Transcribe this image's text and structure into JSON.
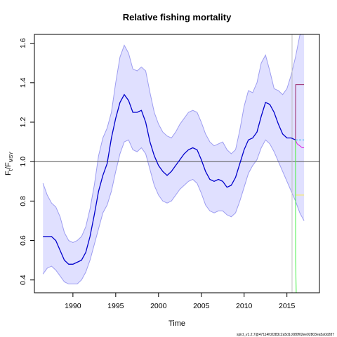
{
  "chart_data": {
    "type": "line",
    "title": "Relative fishing mortality",
    "xlabel": "Time",
    "ylabel": {
      "main": "F",
      "sub_t": "t",
      "slash": "/F",
      "sub_msy": "MSY"
    },
    "xlim": [
      1985.5,
      2018.8
    ],
    "ylim": [
      0.335,
      1.645
    ],
    "x_ticks": [
      1990,
      1995,
      2000,
      2005,
      2010,
      2015
    ],
    "y_ticks": [
      0.4,
      0.6,
      0.8,
      1.0,
      1.2,
      1.4,
      1.6
    ],
    "y_tick_labels": [
      "0.4",
      "0.6",
      "0.8",
      "1.0",
      "1.2",
      "1.4",
      "1.6"
    ],
    "reference_line_y": 1.0,
    "current_year_line_x": 2015.6,
    "grid": false,
    "colors": {
      "estimate": "#0000cc",
      "ci_fill": "#e0e0ff",
      "ci_line": "#9d9df0",
      "reference": "#555555",
      "vline": "#c0c0c0",
      "proj_magenta": "#dd22dd",
      "proj_dark": "#992266",
      "proj_cyan": "#22bbee",
      "proj_yellow": "#ffee44",
      "proj_green": "#44ee44"
    },
    "series": [
      {
        "role": "estimate",
        "x": [
          1986.5,
          1987.5,
          1988.0,
          1988.5,
          1989.0,
          1989.5,
          1990.0,
          1990.5,
          1991.0,
          1991.5,
          1992.0,
          1992.5,
          1993.0,
          1993.5,
          1994.0,
          1994.5,
          1995.0,
          1995.5,
          1996.0,
          1996.5,
          1997.0,
          1997.5,
          1998.0,
          1998.5,
          1999.0,
          1999.5,
          2000.0,
          2000.5,
          2001.0,
          2001.5,
          2002.0,
          2002.5,
          2003.0,
          2003.5,
          2004.0,
          2004.5,
          2005.0,
          2005.5,
          2006.0,
          2006.5,
          2007.0,
          2007.5,
          2008.0,
          2008.5,
          2009.0,
          2009.5,
          2010.0,
          2010.5,
          2011.0,
          2011.5,
          2012.0,
          2012.5,
          2013.0,
          2013.5,
          2014.0,
          2014.5,
          2015.0,
          2015.5,
          2016.0
        ],
        "values": [
          0.62,
          0.62,
          0.6,
          0.55,
          0.5,
          0.48,
          0.48,
          0.49,
          0.5,
          0.54,
          0.62,
          0.73,
          0.85,
          0.93,
          0.99,
          1.12,
          1.22,
          1.3,
          1.34,
          1.31,
          1.25,
          1.25,
          1.26,
          1.2,
          1.1,
          1.03,
          0.98,
          0.95,
          0.93,
          0.95,
          0.98,
          1.01,
          1.04,
          1.06,
          1.07,
          1.06,
          1.01,
          0.95,
          0.91,
          0.9,
          0.91,
          0.9,
          0.87,
          0.88,
          0.92,
          0.99,
          1.06,
          1.11,
          1.12,
          1.15,
          1.23,
          1.3,
          1.29,
          1.25,
          1.19,
          1.14,
          1.12,
          1.12,
          1.11
        ]
      },
      {
        "role": "upper_ci",
        "x": [
          1986.5,
          1987.0,
          1987.5,
          1988.0,
          1988.5,
          1989.0,
          1989.5,
          1990.0,
          1990.5,
          1991.0,
          1991.5,
          1992.0,
          1992.5,
          1993.0,
          1993.5,
          1994.0,
          1994.5,
          1995.0,
          1995.5,
          1996.0,
          1996.5,
          1997.0,
          1997.5,
          1998.0,
          1998.5,
          1999.0,
          1999.5,
          2000.0,
          2000.5,
          2001.0,
          2001.5,
          2002.0,
          2002.5,
          2003.0,
          2003.5,
          2004.0,
          2004.5,
          2005.0,
          2005.5,
          2006.0,
          2006.5,
          2007.0,
          2007.5,
          2008.0,
          2008.5,
          2009.0,
          2009.5,
          2010.0,
          2010.5,
          2011.0,
          2011.5,
          2012.0,
          2012.5,
          2013.0,
          2013.5,
          2014.0,
          2014.5,
          2015.0,
          2015.5,
          2016.0,
          2016.5,
          2017.0
        ],
        "values": [
          0.89,
          0.83,
          0.79,
          0.77,
          0.72,
          0.64,
          0.6,
          0.59,
          0.6,
          0.62,
          0.67,
          0.76,
          0.88,
          1.03,
          1.12,
          1.17,
          1.25,
          1.4,
          1.53,
          1.59,
          1.55,
          1.47,
          1.46,
          1.48,
          1.46,
          1.35,
          1.25,
          1.19,
          1.15,
          1.13,
          1.12,
          1.15,
          1.19,
          1.22,
          1.25,
          1.26,
          1.25,
          1.2,
          1.14,
          1.1,
          1.08,
          1.09,
          1.1,
          1.06,
          1.04,
          1.06,
          1.16,
          1.28,
          1.36,
          1.35,
          1.4,
          1.5,
          1.54,
          1.46,
          1.37,
          1.36,
          1.34,
          1.37,
          1.44,
          1.53,
          1.64,
          1.66
        ]
      },
      {
        "role": "lower_ci",
        "x": [
          1986.5,
          1987.0,
          1987.5,
          1988.0,
          1988.5,
          1989.0,
          1989.5,
          1990.0,
          1990.5,
          1991.0,
          1991.5,
          1992.0,
          1992.5,
          1993.0,
          1993.5,
          1994.0,
          1994.5,
          1995.0,
          1995.5,
          1996.0,
          1996.5,
          1997.0,
          1997.5,
          1998.0,
          1998.5,
          1999.0,
          1999.5,
          2000.0,
          2000.5,
          2001.0,
          2001.5,
          2002.0,
          2002.5,
          2003.0,
          2003.5,
          2004.0,
          2004.5,
          2005.0,
          2005.5,
          2006.0,
          2006.5,
          2007.0,
          2007.5,
          2008.0,
          2008.5,
          2009.0,
          2009.5,
          2010.0,
          2010.5,
          2011.0,
          2011.5,
          2012.0,
          2012.5,
          2013.0,
          2013.5,
          2014.0,
          2014.5,
          2015.0,
          2015.5,
          2016.0,
          2016.5,
          2017.0
        ],
        "values": [
          0.43,
          0.46,
          0.47,
          0.45,
          0.42,
          0.39,
          0.38,
          0.38,
          0.38,
          0.4,
          0.44,
          0.5,
          0.58,
          0.66,
          0.74,
          0.78,
          0.85,
          0.95,
          1.04,
          1.1,
          1.11,
          1.06,
          1.05,
          1.07,
          1.04,
          0.96,
          0.88,
          0.83,
          0.8,
          0.79,
          0.8,
          0.83,
          0.86,
          0.88,
          0.9,
          0.91,
          0.89,
          0.84,
          0.78,
          0.75,
          0.74,
          0.75,
          0.75,
          0.73,
          0.72,
          0.74,
          0.8,
          0.87,
          0.94,
          0.98,
          1.01,
          1.07,
          1.11,
          1.09,
          1.05,
          1.0,
          0.95,
          0.9,
          0.85,
          0.8,
          0.74,
          0.7
        ]
      },
      {
        "role": "projection",
        "color_key": "proj_magenta",
        "x": [
          2016.0,
          2016.2,
          2016.5,
          2016.8,
          2017.0
        ],
        "values": [
          1.11,
          1.09,
          1.08,
          1.07,
          1.07
        ]
      },
      {
        "role": "projection",
        "color_key": "proj_cyan",
        "dashed": true,
        "x": [
          2016.0,
          2017.0
        ],
        "values": [
          1.11,
          1.11
        ]
      },
      {
        "role": "projection",
        "color_key": "proj_dark",
        "x": [
          2016.0,
          2016.02,
          2017.0
        ],
        "values": [
          1.11,
          1.39,
          1.39
        ]
      },
      {
        "role": "projection",
        "color_key": "proj_yellow",
        "x": [
          2016.0,
          2016.02,
          2017.0
        ],
        "values": [
          1.11,
          0.83,
          0.83
        ]
      },
      {
        "role": "projection",
        "color_key": "proj_green",
        "x": [
          2016.0,
          2016.02,
          2016.1
        ],
        "values": [
          1.11,
          0.5,
          0.3
        ]
      }
    ]
  },
  "footer": "spict_v1.2.7@47114fc8383c2a5d1c080f02ee02803ea5a0d287"
}
